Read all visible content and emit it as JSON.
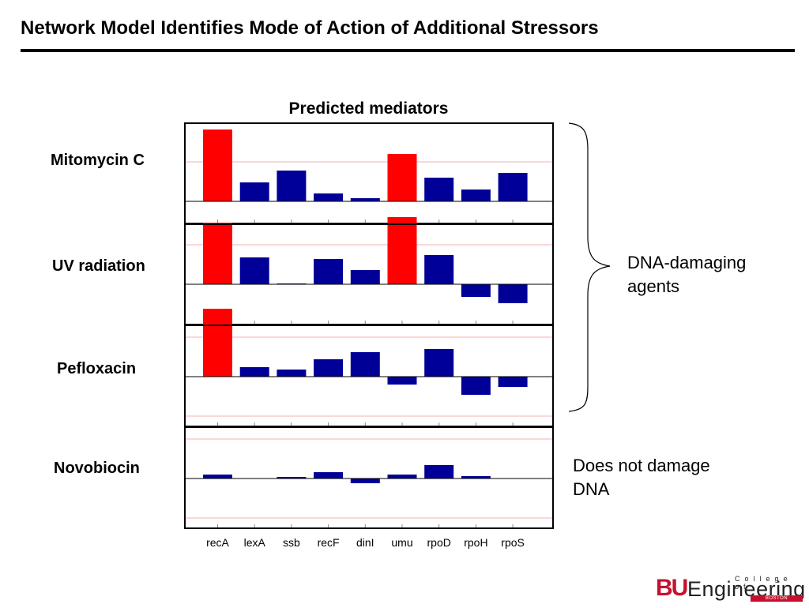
{
  "slide": {
    "title": "Network Model Identifies Mode of Action of Additional Stressors"
  },
  "colors": {
    "highlight": "#ff0000",
    "bar": "#000099",
    "gridline": "#f0b0b0",
    "frame": "#000000"
  },
  "chart_data": {
    "type": "bar",
    "title": "Predicted mediators",
    "categories": [
      "recA",
      "lexA",
      "ssb",
      "recF",
      "dinI",
      "umu",
      "rpoD",
      "rpoH",
      "rpoS"
    ],
    "ylim": [
      -1,
      1
    ],
    "grid": true,
    "panels": [
      {
        "name": "Mitomycin C",
        "values": [
          0.91,
          0.24,
          0.39,
          0.1,
          0.04,
          0.6,
          0.3,
          0.15,
          0.36
        ],
        "highlight": [
          0,
          5
        ]
      },
      {
        "name": "UV radiation",
        "values": [
          0.78,
          0.34,
          0.01,
          0.32,
          0.18,
          0.85,
          0.37,
          -0.16,
          -0.24
        ],
        "highlight": [
          0,
          5
        ]
      },
      {
        "name": "Pefloxacin",
        "values": [
          0.86,
          0.12,
          0.09,
          0.22,
          0.31,
          -0.1,
          0.35,
          -0.23,
          -0.13
        ],
        "highlight": [
          0
        ]
      },
      {
        "name": "Novobiocin",
        "values": [
          0.05,
          0.0,
          0.02,
          0.08,
          -0.06,
          0.05,
          0.17,
          0.03,
          0.0
        ],
        "highlight": []
      }
    ]
  },
  "annotations": {
    "dna_damaging": [
      "DNA-damaging",
      "agents"
    ],
    "non_damaging": [
      "Does not damage",
      "DNA"
    ]
  },
  "logo": {
    "bu": "BU",
    "engineering": "Engineering",
    "college": "College of",
    "university": "BOSTON UNIVERSITY"
  }
}
